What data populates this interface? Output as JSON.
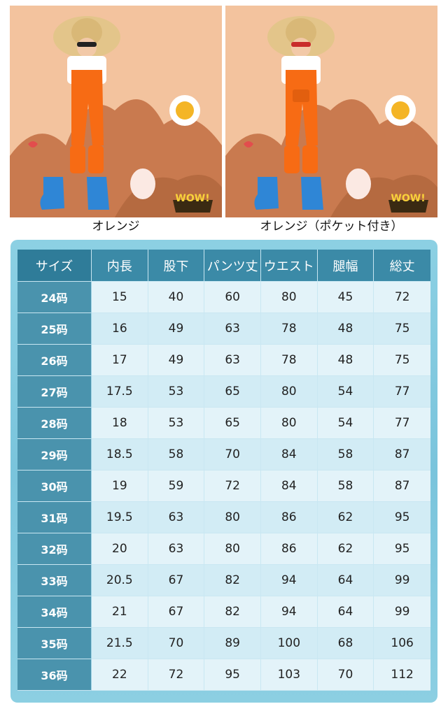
{
  "products": [
    {
      "caption": "オレンジ",
      "sticker_text": "WOW!"
    },
    {
      "caption": "オレンジ（ポケット付き）",
      "sticker_text": "WOW!"
    }
  ],
  "colors": {
    "background_peach": "#f3c39e",
    "hill_brown": "#c97a4f",
    "overall_orange": "#f76b14",
    "boots_blue": "#2f86d6",
    "header_blue": "#3b8aa7",
    "cell_light": "#e3f3f9"
  },
  "size_table": {
    "headers": [
      "サイズ",
      "内長",
      "股下",
      "パンツ丈",
      "ウエスト",
      "腿幅",
      "総丈"
    ],
    "rows": [
      [
        "24码",
        "15",
        "40",
        "60",
        "80",
        "45",
        "72"
      ],
      [
        "25码",
        "16",
        "49",
        "63",
        "78",
        "48",
        "75"
      ],
      [
        "26码",
        "17",
        "49",
        "63",
        "78",
        "48",
        "75"
      ],
      [
        "27码",
        "17.5",
        "53",
        "65",
        "80",
        "54",
        "77"
      ],
      [
        "28码",
        "18",
        "53",
        "65",
        "80",
        "54",
        "77"
      ],
      [
        "29码",
        "18.5",
        "58",
        "70",
        "84",
        "58",
        "87"
      ],
      [
        "30码",
        "19",
        "59",
        "72",
        "84",
        "58",
        "87"
      ],
      [
        "31码",
        "19.5",
        "63",
        "80",
        "86",
        "62",
        "95"
      ],
      [
        "32码",
        "20",
        "63",
        "80",
        "86",
        "62",
        "95"
      ],
      [
        "33码",
        "20.5",
        "67",
        "82",
        "94",
        "64",
        "99"
      ],
      [
        "34码",
        "21",
        "67",
        "82",
        "94",
        "64",
        "99"
      ],
      [
        "35码",
        "21.5",
        "70",
        "89",
        "100",
        "68",
        "106"
      ],
      [
        "36码",
        "22",
        "72",
        "95",
        "103",
        "70",
        "112"
      ]
    ]
  }
}
